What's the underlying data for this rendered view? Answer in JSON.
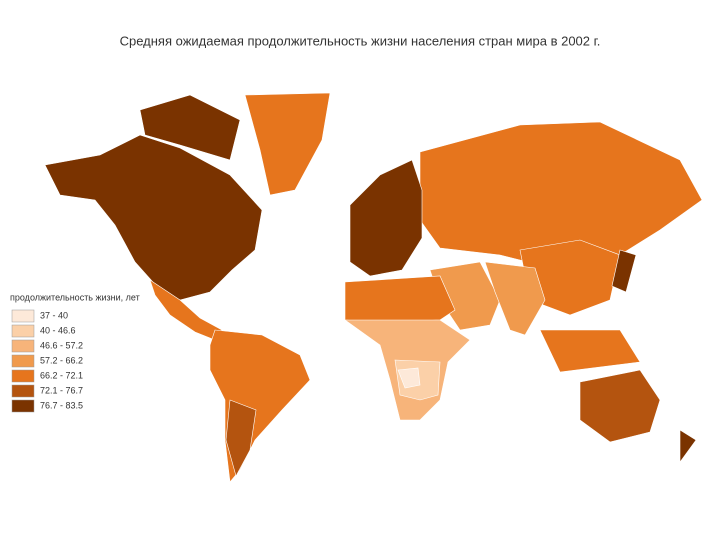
{
  "title": "Средняя ожидаемая продолжительность жизни населения стран мира в 2002 г.",
  "legend": {
    "title": "продолжительность жизни, лет",
    "items": [
      {
        "label": "37 - 40",
        "color": "#fde9d9"
      },
      {
        "label": "40 - 46.6",
        "color": "#fbd0a8"
      },
      {
        "label": "46.6 - 57.2",
        "color": "#f7b47a"
      },
      {
        "label": "57.2 - 66.2",
        "color": "#f09a4d"
      },
      {
        "label": "66.2 - 72.1",
        "color": "#e6751d"
      },
      {
        "label": "72.1 - 76.7",
        "color": "#b4540f"
      },
      {
        "label": "76.7 - 83.5",
        "color": "#7a3300"
      }
    ]
  }
}
